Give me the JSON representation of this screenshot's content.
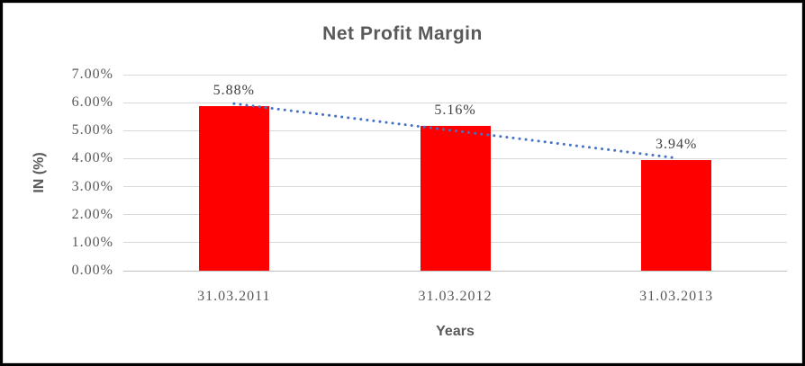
{
  "frame": {
    "border_color": "#000000",
    "inner_border_color": "#d9d9d9"
  },
  "chart_data": {
    "type": "bar",
    "title": "Net Profit Margin",
    "categories": [
      "31.03.2011",
      "31.03.2012",
      "31.03.2013"
    ],
    "values": [
      5.88,
      5.16,
      3.94
    ],
    "value_labels": [
      "5.88%",
      "5.16%",
      "3.94%"
    ],
    "xlabel": "Years",
    "ylabel": "IN (%)",
    "ylim": [
      0,
      7
    ],
    "ytick_step": 1,
    "ytick_labels": [
      "0.00%",
      "1.00%",
      "2.00%",
      "3.00%",
      "4.00%",
      "5.00%",
      "6.00%",
      "7.00%"
    ],
    "grid": true,
    "legend": "none",
    "bar_color": "#ff0000",
    "trendline": {
      "type": "linear",
      "style": "dotted",
      "color": "#4472c4"
    },
    "colors": {
      "title": "#595959",
      "tick_label": "#595959",
      "data_label": "#404040",
      "gridline": "#d9d9d9",
      "axis_line": "#bfbfbf"
    }
  }
}
